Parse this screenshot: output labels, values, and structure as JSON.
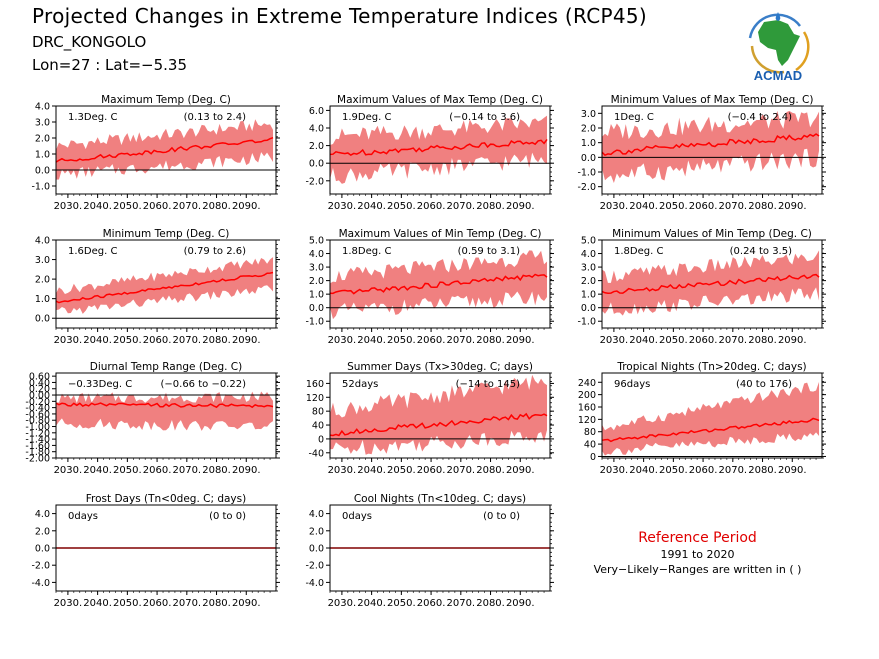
{
  "header": {
    "title": "Projected Changes in Extreme Temperature Indices (RCP45)",
    "location": "DRC_KONGOLO",
    "coords": "Lon=27 : Lat=−5.35"
  },
  "logo": {
    "text": "ACMAD"
  },
  "reference": {
    "title": "Reference Period",
    "years": "1991 to 2020",
    "note": "Very−Likely−Ranges are written in ( )"
  },
  "colors": {
    "band": "#f08080",
    "line": "#ff0000",
    "zero": "#000000",
    "ref_text": "#e00000"
  },
  "chart_data": [
    {
      "type": "area",
      "title": "Maximum Temp (Deg. C)",
      "change": "1.3Deg. C",
      "range": "(0.13 to 2.4)",
      "x_ticks": [
        "2030.",
        "2040.",
        "2050.",
        "2060.",
        "2070.",
        "2080.",
        "2090."
      ],
      "x_range": [
        2026,
        2100
      ],
      "ylim": [
        -1.5,
        4.0
      ],
      "y_ticks": [
        "4.0",
        "3.0",
        "2.0",
        "1.0",
        "0.0",
        "-1.0"
      ],
      "y_tick_values": [
        4,
        3,
        2,
        1,
        0,
        -1
      ],
      "median": {
        "start": 0.55,
        "end": 1.9
      },
      "low": {
        "start": -0.3,
        "end": 0.8
      },
      "high": {
        "start": 1.5,
        "end": 2.9
      }
    },
    {
      "type": "area",
      "title": "Maximum Values of Max Temp (Deg. C)",
      "change": "1.9Deg. C",
      "range": "(−0.14 to 3.6)",
      "x_ticks": [
        "2030.",
        "2040.",
        "2050.",
        "2060.",
        "2070.",
        "2080.",
        "2090."
      ],
      "x_range": [
        2026,
        2100
      ],
      "ylim": [
        -3.5,
        6.5
      ],
      "y_ticks": [
        "6.0",
        "4.0",
        "2.0",
        "0.0",
        "-2.0"
      ],
      "y_tick_values": [
        6,
        4,
        2,
        0,
        -2
      ],
      "median": {
        "start": 1.0,
        "end": 2.5
      },
      "low": {
        "start": -1.5,
        "end": 0.5
      },
      "high": {
        "start": 3.0,
        "end": 4.6
      }
    },
    {
      "type": "area",
      "title": "Minimum Values of Max Temp (Deg. C)",
      "change": "1Deg. C",
      "range": "(−0.4 to 2.4)",
      "x_ticks": [
        "2030.",
        "2040.",
        "2050.",
        "2060.",
        "2070.",
        "2080.",
        "2090."
      ],
      "x_range": [
        2026,
        2100
      ],
      "ylim": [
        -2.5,
        3.5
      ],
      "y_ticks": [
        "3.0",
        "2.0",
        "1.0",
        "0.0",
        "-1.0",
        "-2.0"
      ],
      "y_tick_values": [
        3,
        2,
        1,
        0,
        -1,
        -2
      ],
      "median": {
        "start": 0.3,
        "end": 1.5
      },
      "low": {
        "start": -1.3,
        "end": 0.0
      },
      "high": {
        "start": 1.7,
        "end": 2.7
      }
    },
    {
      "type": "area",
      "title": "Minimum Temp (Deg. C)",
      "change": "1.6Deg. C",
      "range": "(0.79 to 2.6)",
      "x_ticks": [
        "2030.",
        "2040.",
        "2050.",
        "2060.",
        "2070.",
        "2080.",
        "2090."
      ],
      "x_range": [
        2026,
        2100
      ],
      "ylim": [
        -0.5,
        4.0
      ],
      "y_ticks": [
        "4.0",
        "3.0",
        "2.0",
        "1.0",
        "0.0"
      ],
      "y_tick_values": [
        4,
        3,
        2,
        1,
        0
      ],
      "median": {
        "start": 0.8,
        "end": 2.3
      },
      "low": {
        "start": 0.3,
        "end": 1.5
      },
      "high": {
        "start": 1.4,
        "end": 3.0
      }
    },
    {
      "type": "area",
      "title": "Maximum Values of Min Temp (Deg. C)",
      "change": "1.8Deg. C",
      "range": "(0.59 to 3.1)",
      "x_ticks": [
        "2030.",
        "2040.",
        "2050.",
        "2060.",
        "2070.",
        "2080.",
        "2090."
      ],
      "x_range": [
        2026,
        2100
      ],
      "ylim": [
        -1.5,
        5.0
      ],
      "y_ticks": [
        "5.0",
        "4.0",
        "3.0",
        "2.0",
        "1.0",
        "0.0",
        "-1.0"
      ],
      "y_tick_values": [
        5,
        4,
        3,
        2,
        1,
        0,
        -1
      ],
      "median": {
        "start": 1.0,
        "end": 2.4
      },
      "low": {
        "start": -0.3,
        "end": 0.8
      },
      "high": {
        "start": 2.3,
        "end": 3.8
      }
    },
    {
      "type": "area",
      "title": "Minimum Values of Min Temp (Deg. C)",
      "change": "1.8Deg. C",
      "range": "(0.24 to 3.5)",
      "x_ticks": [
        "2030.",
        "2040.",
        "2050.",
        "2060.",
        "2070.",
        "2080.",
        "2090."
      ],
      "x_range": [
        2026,
        2100
      ],
      "ylim": [
        -1.5,
        5.0
      ],
      "y_ticks": [
        "5.0",
        "4.0",
        "3.0",
        "2.0",
        "1.0",
        "0.0",
        "-1.0"
      ],
      "y_tick_values": [
        5,
        4,
        3,
        2,
        1,
        0,
        -1
      ],
      "median": {
        "start": 1.1,
        "end": 2.4
      },
      "low": {
        "start": -0.2,
        "end": 1.0
      },
      "high": {
        "start": 2.3,
        "end": 3.8
      }
    },
    {
      "type": "area",
      "title": "Diurnal Temp Range (Deg. C)",
      "change": "−0.33Deg. C",
      "range": "(−0.66 to −0.22)",
      "x_ticks": [
        "2030.",
        "2040.",
        "2050.",
        "2060.",
        "2070.",
        "2080.",
        "2090."
      ],
      "x_range": [
        2026,
        2100
      ],
      "ylim": [
        -2.0,
        0.7
      ],
      "y_ticks": [
        "0.60",
        "0.40",
        "0.20",
        "0.00",
        "-0.20",
        "-0.40",
        "-0.60",
        "-0.80",
        "-1.00",
        "-1.20",
        "-1.40",
        "-1.60",
        "-1.80",
        "-2.00"
      ],
      "y_tick_values": [
        0.6,
        0.4,
        0.2,
        0,
        -0.2,
        -0.4,
        -0.6,
        -0.8,
        -1.0,
        -1.2,
        -1.4,
        -1.6,
        -1.8,
        -2.0
      ],
      "median": {
        "start": -0.3,
        "end": -0.35
      },
      "low": {
        "start": -0.9,
        "end": -1.0
      },
      "high": {
        "start": -0.1,
        "end": -0.05
      }
    },
    {
      "type": "area",
      "title": "Summer Days (Tx>30deg. C; days)",
      "change": "52days",
      "range": "(−14 to 145)",
      "x_ticks": [
        "2030.",
        "2040.",
        "2050.",
        "2060.",
        "2070.",
        "2080.",
        "2090."
      ],
      "x_range": [
        2026,
        2100
      ],
      "ylim": [
        -55,
        190
      ],
      "y_ticks": [
        "160",
        "120",
        "80",
        "40",
        "0",
        "-40"
      ],
      "y_tick_values": [
        160,
        120,
        80,
        40,
        0,
        -40
      ],
      "median": {
        "start": 15,
        "end": 70
      },
      "low": {
        "start": -30,
        "end": 10
      },
      "high": {
        "start": 80,
        "end": 170
      }
    },
    {
      "type": "area",
      "title": "Tropical Nights (Tn>20deg. C; days)",
      "change": "96days",
      "range": "(40 to 176)",
      "x_ticks": [
        "2030.",
        "2040.",
        "2050.",
        "2060.",
        "2070.",
        "2080.",
        "2090."
      ],
      "x_range": [
        2026,
        2100
      ],
      "ylim": [
        -5,
        270
      ],
      "y_ticks": [
        "240",
        "200",
        "160",
        "120",
        "80",
        "40",
        "0"
      ],
      "y_tick_values": [
        240,
        200,
        160,
        120,
        80,
        40,
        0
      ],
      "median": {
        "start": 50,
        "end": 120
      },
      "low": {
        "start": 15,
        "end": 70
      },
      "high": {
        "start": 90,
        "end": 230
      }
    },
    {
      "type": "line",
      "title": "Frost Days (Tn<0deg. C; days)",
      "change": "0days",
      "range": "(0 to 0)",
      "x_ticks": [
        "2030.",
        "2040.",
        "2050.",
        "2060.",
        "2070.",
        "2080.",
        "2090."
      ],
      "x_range": [
        2026,
        2100
      ],
      "ylim": [
        -5.0,
        5.0
      ],
      "y_ticks": [
        "4.0",
        "2.0",
        "0.0",
        "-2.0",
        "-4.0"
      ],
      "y_tick_values": [
        4,
        2,
        0,
        -2,
        -4
      ],
      "median": {
        "start": 0,
        "end": 0
      },
      "low": {
        "start": 0,
        "end": 0
      },
      "high": {
        "start": 0,
        "end": 0
      }
    },
    {
      "type": "line",
      "title": "Cool Nights (Tn<10deg. C; days)",
      "change": "0days",
      "range": "(0 to 0)",
      "x_ticks": [
        "2030.",
        "2040.",
        "2050.",
        "2060.",
        "2070.",
        "2080.",
        "2090."
      ],
      "x_range": [
        2026,
        2100
      ],
      "ylim": [
        -5.0,
        5.0
      ],
      "y_ticks": [
        "4.0",
        "2.0",
        "0.0",
        "-2.0",
        "-4.0"
      ],
      "y_tick_values": [
        4,
        2,
        0,
        -2,
        -4
      ],
      "median": {
        "start": 0,
        "end": 0
      },
      "low": {
        "start": 0,
        "end": 0
      },
      "high": {
        "start": 0,
        "end": 0
      }
    }
  ]
}
